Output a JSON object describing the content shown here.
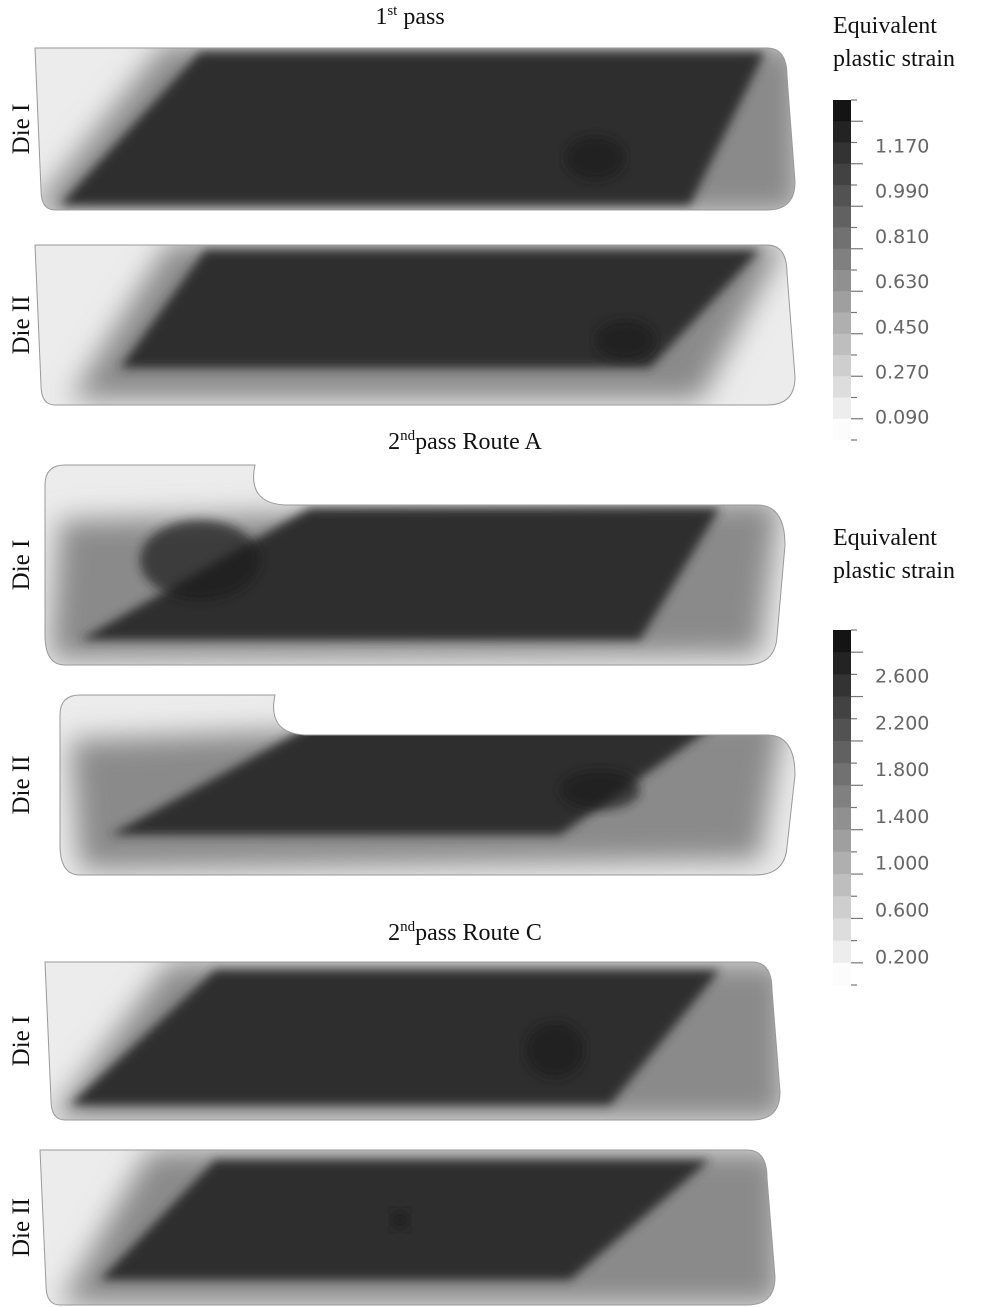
{
  "sections": [
    {
      "title": {
        "base": "1",
        "sup": "st",
        "rest": " pass"
      },
      "rows": [
        "Die I",
        "Die II"
      ]
    },
    {
      "title": {
        "base": "2",
        "sup": "nd",
        "rest": "pass Route A"
      },
      "rows": [
        "Die I",
        "Die II"
      ]
    },
    {
      "title": {
        "base": "2",
        "sup": "nd",
        "rest": "pass Route C"
      },
      "rows": [
        "Die I",
        "Die II"
      ]
    }
  ],
  "legends": [
    {
      "title": [
        "Equivalent",
        "plastic strain"
      ],
      "labels": [
        "1.170",
        "0.990",
        "0.810",
        "0.630",
        "0.450",
        "0.270",
        "0.090"
      ]
    },
    {
      "title": [
        "Equivalent",
        "plastic strain"
      ],
      "labels": [
        "2.600",
        "2.200",
        "1.800",
        "1.400",
        "1.000",
        "0.600",
        "0.200"
      ]
    }
  ]
}
